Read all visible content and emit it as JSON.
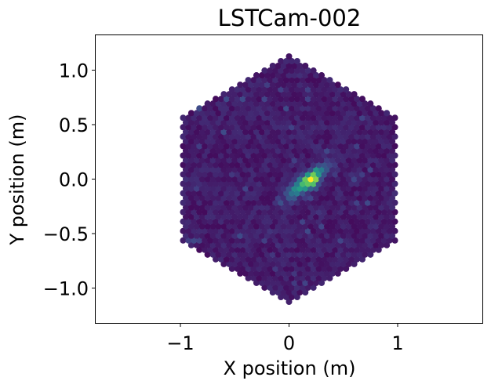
{
  "chart_data": {
    "type": "heatmap",
    "title": "LSTCam-002",
    "xlabel": "X position (m)",
    "ylabel": "Y position (m)",
    "xlim": [
      -1.78,
      1.78
    ],
    "ylim": [
      -1.32,
      1.32
    ],
    "xticks": [
      -1,
      0,
      1
    ],
    "xtick_labels": [
      "−1",
      "0",
      "1"
    ],
    "yticks": [
      1.0,
      0.5,
      0.0,
      -0.5,
      -1.0
    ],
    "ytick_labels": [
      "1.0",
      "0.5",
      "0.0",
      "−0.5",
      "−1.0"
    ],
    "colormap": "viridis",
    "camera": {
      "shape": "hexagon",
      "vertex_radius_m": 1.15,
      "pixel_pitch_m": 0.05,
      "background_level": 0.08
    },
    "shower_image": {
      "center_x_m": 0.17,
      "center_y_m": -0.02,
      "orientation_deg": 38,
      "length_m": 0.14,
      "width_m": 0.045,
      "peak_level": 1.0,
      "peak_x_m": 0.22,
      "peak_y_m": 0.0
    },
    "grid": false,
    "legend": "none"
  }
}
